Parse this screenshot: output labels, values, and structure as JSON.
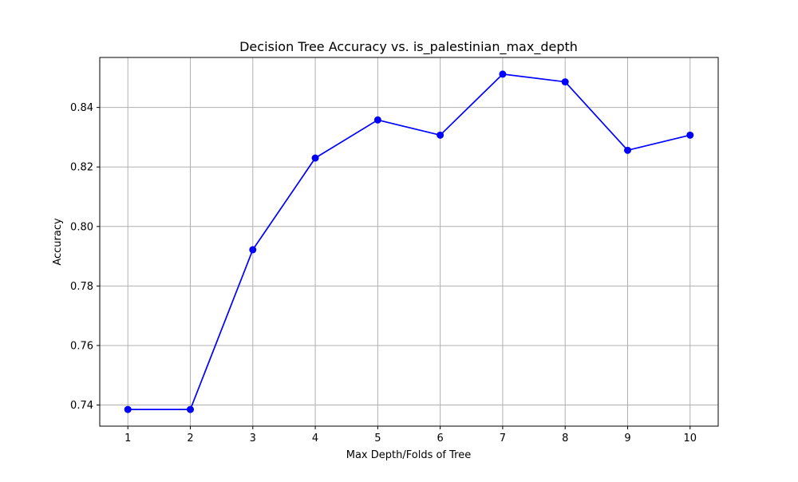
{
  "chart_data": {
    "type": "line",
    "title": "Decision Tree Accuracy vs. is_palestinian_max_depth",
    "xlabel": "Max Depth/Folds of Tree",
    "ylabel": "Accuracy",
    "x": [
      1,
      2,
      3,
      4,
      5,
      6,
      7,
      8,
      9,
      10
    ],
    "series": [
      {
        "color": "#0000ff",
        "marker": "circle",
        "values": [
          0.7385,
          0.7385,
          0.7922,
          0.823,
          0.8358,
          0.8307,
          0.8512,
          0.8486,
          0.8256,
          0.8307
        ]
      }
    ],
    "xticks": [
      1,
      2,
      3,
      4,
      5,
      6,
      7,
      8,
      9,
      10
    ],
    "xtick_labels": [
      "1",
      "2",
      "3",
      "4",
      "5",
      "6",
      "7",
      "8",
      "9",
      "10"
    ],
    "yticks": [
      0.74,
      0.76,
      0.78,
      0.8,
      0.82,
      0.84
    ],
    "ytick_labels": [
      "0.74",
      "0.76",
      "0.78",
      "0.80",
      "0.82",
      "0.84"
    ],
    "xlim": [
      0.55,
      10.45
    ],
    "ylim": [
      0.7329,
      0.8568
    ],
    "grid": true,
    "legend": "none"
  }
}
